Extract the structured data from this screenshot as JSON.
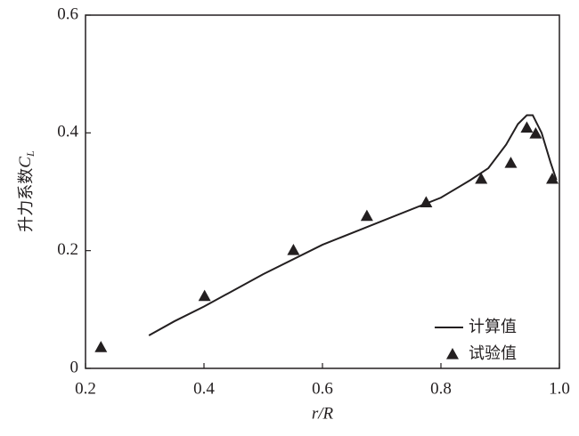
{
  "chart_data": {
    "type": "line",
    "xlabel": "r/R",
    "ylabel": {
      "text": "升力系数",
      "symbol": "C",
      "subscript": "L"
    },
    "xlim": [
      0.2,
      1.0
    ],
    "xticks": [
      0.2,
      0.4,
      0.6,
      0.8,
      {
        "value": 1.0,
        "label": "1.0"
      }
    ],
    "ylim": [
      0,
      0.6
    ],
    "yticks": [
      0,
      0.2,
      0.4,
      0.6
    ],
    "legend": "lower right",
    "series": [
      {
        "name": "计算值",
        "color": "#231f20",
        "style": "line",
        "x": [
          0.307,
          0.35,
          0.4,
          0.5,
          0.6,
          0.7,
          0.8,
          0.85,
          0.88,
          0.91,
          0.93,
          0.945,
          0.955,
          0.97,
          0.985,
          0.995
        ],
        "values": [
          0.056,
          0.08,
          0.105,
          0.16,
          0.21,
          0.25,
          0.29,
          0.32,
          0.34,
          0.38,
          0.415,
          0.43,
          0.43,
          0.4,
          0.35,
          0.32
        ]
      },
      {
        "name": "试验值",
        "color": "#231f20",
        "style": "triangle",
        "x": [
          0.226,
          0.401,
          0.551,
          0.675,
          0.775,
          0.868,
          0.918,
          0.945,
          0.96,
          0.988
        ],
        "values": [
          0.036,
          0.123,
          0.201,
          0.259,
          0.282,
          0.322,
          0.349,
          0.409,
          0.399,
          0.322
        ]
      }
    ]
  }
}
